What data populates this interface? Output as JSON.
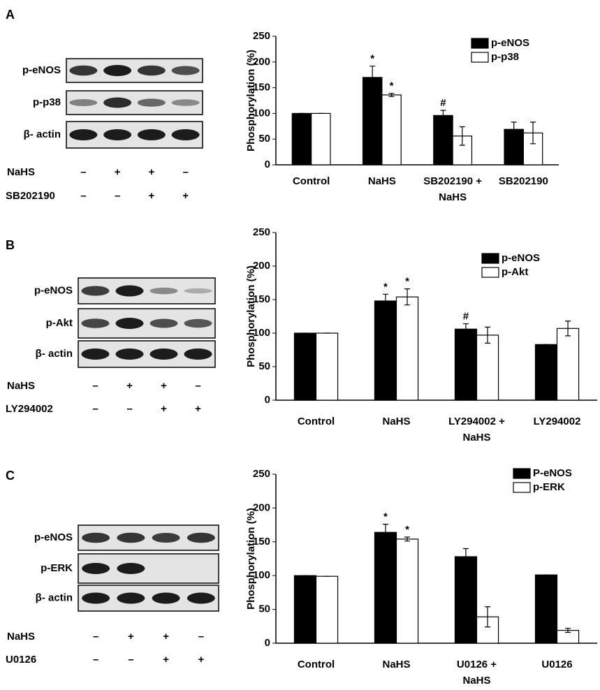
{
  "panels": [
    {
      "letter": "A",
      "blot_rows": [
        "p-eNOS",
        "p-p38",
        "β- actin"
      ],
      "treatments": [
        {
          "name": "NaHS",
          "signs": [
            "–",
            "+",
            "+",
            "–"
          ]
        },
        {
          "name": "SB202190",
          "signs": [
            "–",
            "–",
            "+",
            "+"
          ]
        }
      ]
    },
    {
      "letter": "B",
      "blot_rows": [
        "p-eNOS",
        "p-Akt",
        "β- actin"
      ],
      "treatments": [
        {
          "name": "NaHS",
          "signs": [
            "–",
            "+",
            "+",
            "–"
          ]
        },
        {
          "name": "LY294002",
          "signs": [
            "–",
            "–",
            "+",
            "+"
          ]
        }
      ]
    },
    {
      "letter": "C",
      "blot_rows": [
        "p-eNOS",
        "p-ERK",
        "β- actin"
      ],
      "treatments": [
        {
          "name": "NaHS",
          "signs": [
            "–",
            "+",
            "+",
            "–"
          ]
        },
        {
          "name": "U0126",
          "signs": [
            "–",
            "–",
            "+",
            "+"
          ]
        }
      ]
    }
  ],
  "chart_data": [
    {
      "type": "bar",
      "ylabel": "Phosphorylation (%)",
      "categories": [
        [
          "Control"
        ],
        [
          "NaHS"
        ],
        [
          "SB202190 +",
          "NaHS"
        ],
        [
          "SB202190"
        ]
      ],
      "ylim": [
        0,
        250
      ],
      "yticks": [
        0,
        50,
        100,
        150,
        200,
        250
      ],
      "series": [
        {
          "name": "p-eNOS",
          "color": "#000000",
          "values": [
            100,
            170,
            96,
            69
          ],
          "errors": [
            0,
            22,
            10,
            14
          ],
          "marks": [
            null,
            "*",
            "#",
            null
          ]
        },
        {
          "name": "p-p38",
          "color": "#ffffff",
          "values": [
            100,
            136,
            56,
            62
          ],
          "errors": [
            0,
            3,
            18,
            21
          ],
          "marks": [
            null,
            "*",
            null,
            null
          ]
        }
      ]
    },
    {
      "type": "bar",
      "ylabel": "Phosphorylation (%)",
      "categories": [
        [
          "Control"
        ],
        [
          "NaHS"
        ],
        [
          "LY294002 +",
          "NaHS"
        ],
        [
          "LY294002"
        ]
      ],
      "ylim": [
        0,
        250
      ],
      "yticks": [
        0,
        50,
        100,
        150,
        200,
        250
      ],
      "series": [
        {
          "name": "p-eNOS",
          "color": "#000000",
          "values": [
            100,
            148,
            106,
            83
          ],
          "errors": [
            0,
            10,
            8,
            0
          ],
          "marks": [
            null,
            "*",
            "#",
            null
          ]
        },
        {
          "name": "p-Akt",
          "color": "#ffffff",
          "values": [
            100,
            154,
            97,
            107
          ],
          "errors": [
            0,
            12,
            12,
            11
          ],
          "marks": [
            null,
            "*",
            null,
            null
          ]
        }
      ]
    },
    {
      "type": "bar",
      "ylabel": "Phosphorylation (%)",
      "categories": [
        [
          "Control"
        ],
        [
          "NaHS"
        ],
        [
          "U0126 +",
          "NaHS"
        ],
        [
          "U0126"
        ]
      ],
      "ylim": [
        0,
        250
      ],
      "yticks": [
        0,
        50,
        100,
        150,
        200,
        250
      ],
      "series": [
        {
          "name": "P-eNOS",
          "color": "#000000",
          "values": [
            100,
            164,
            128,
            101
          ],
          "errors": [
            0,
            12,
            12,
            0
          ],
          "marks": [
            null,
            "*",
            null,
            null
          ]
        },
        {
          "name": "p-ERK",
          "color": "#ffffff",
          "values": [
            99,
            154,
            39,
            19
          ],
          "errors": [
            0,
            3,
            15,
            3
          ],
          "marks": [
            null,
            "*",
            null,
            null
          ]
        }
      ]
    }
  ]
}
